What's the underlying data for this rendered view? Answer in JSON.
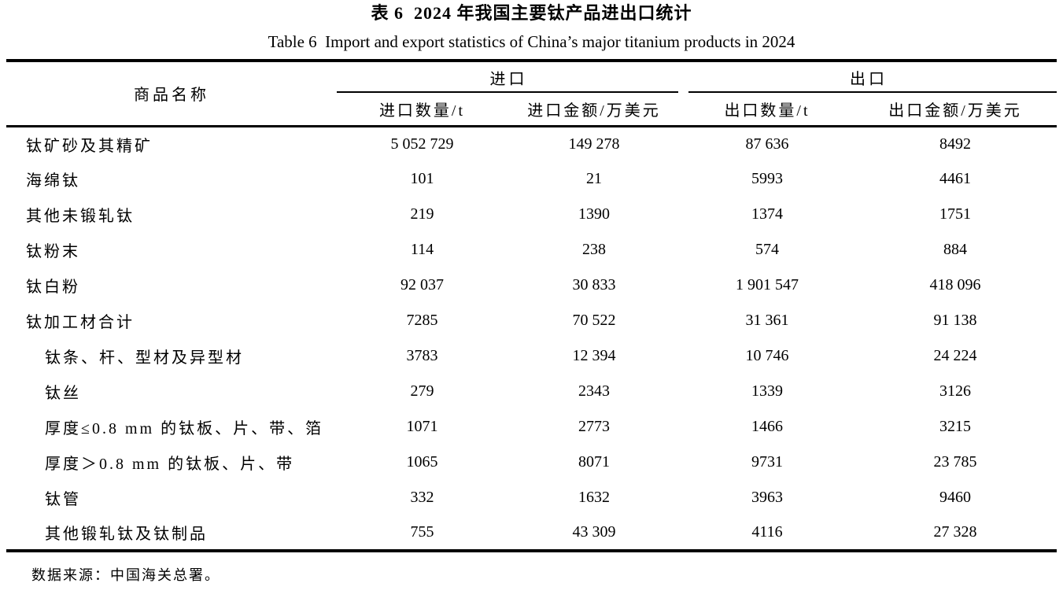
{
  "titles": {
    "zh": "表 6  2024 年我国主要钛产品进出口统计",
    "en": "Table 6  Import and export statistics of China’s major titanium products in 2024"
  },
  "table": {
    "product_col_header": "商品名称",
    "import_group_header": "进口",
    "export_group_header": "出口",
    "sub_headers": [
      "进口数量/t",
      "进口金额/万美元",
      "出口数量/t",
      "出口金额/万美元"
    ],
    "rows": [
      {
        "name": "钛矿砂及其精矿",
        "level": 0,
        "import_qty": "5 052 729",
        "import_amount": "149 278",
        "export_qty": "87 636",
        "export_amount": "8492"
      },
      {
        "name": "海绵钛",
        "level": 0,
        "import_qty": "101",
        "import_amount": "21",
        "export_qty": "5993",
        "export_amount": "4461"
      },
      {
        "name": "其他未锻轧钛",
        "level": 0,
        "import_qty": "219",
        "import_amount": "1390",
        "export_qty": "1374",
        "export_amount": "1751"
      },
      {
        "name": "钛粉末",
        "level": 0,
        "import_qty": "114",
        "import_amount": "238",
        "export_qty": "574",
        "export_amount": "884"
      },
      {
        "name": "钛白粉",
        "level": 0,
        "import_qty": "92 037",
        "import_amount": "30 833",
        "export_qty": "1 901 547",
        "export_amount": "418 096"
      },
      {
        "name": "钛加工材合计",
        "level": 0,
        "import_qty": "7285",
        "import_amount": "70 522",
        "export_qty": "31 361",
        "export_amount": "91 138"
      },
      {
        "name": "钛条、杆、型材及异型材",
        "level": 1,
        "import_qty": "3783",
        "import_amount": "12 394",
        "export_qty": "10 746",
        "export_amount": "24 224"
      },
      {
        "name": "钛丝",
        "level": 1,
        "import_qty": "279",
        "import_amount": "2343",
        "export_qty": "1339",
        "export_amount": "3126"
      },
      {
        "name": "厚度≤0.8 mm 的钛板、片、带、箔",
        "level": 1,
        "import_qty": "1071",
        "import_amount": "2773",
        "export_qty": "1466",
        "export_amount": "3215"
      },
      {
        "name": "厚度＞0.8 mm 的钛板、片、带",
        "level": 1,
        "import_qty": "1065",
        "import_amount": "8071",
        "export_qty": "9731",
        "export_amount": "23 785"
      },
      {
        "name": "钛管",
        "level": 1,
        "import_qty": "332",
        "import_amount": "1632",
        "export_qty": "3963",
        "export_amount": "9460"
      },
      {
        "name": "其他锻轧钛及钛制品",
        "level": 1,
        "import_qty": "755",
        "import_amount": "43 309",
        "export_qty": "4116",
        "export_amount": "27 328"
      }
    ]
  },
  "footnote": "数据来源：中国海关总署。",
  "colors": {
    "text": "#000000",
    "background": "#ffffff",
    "rule": "#000000"
  }
}
